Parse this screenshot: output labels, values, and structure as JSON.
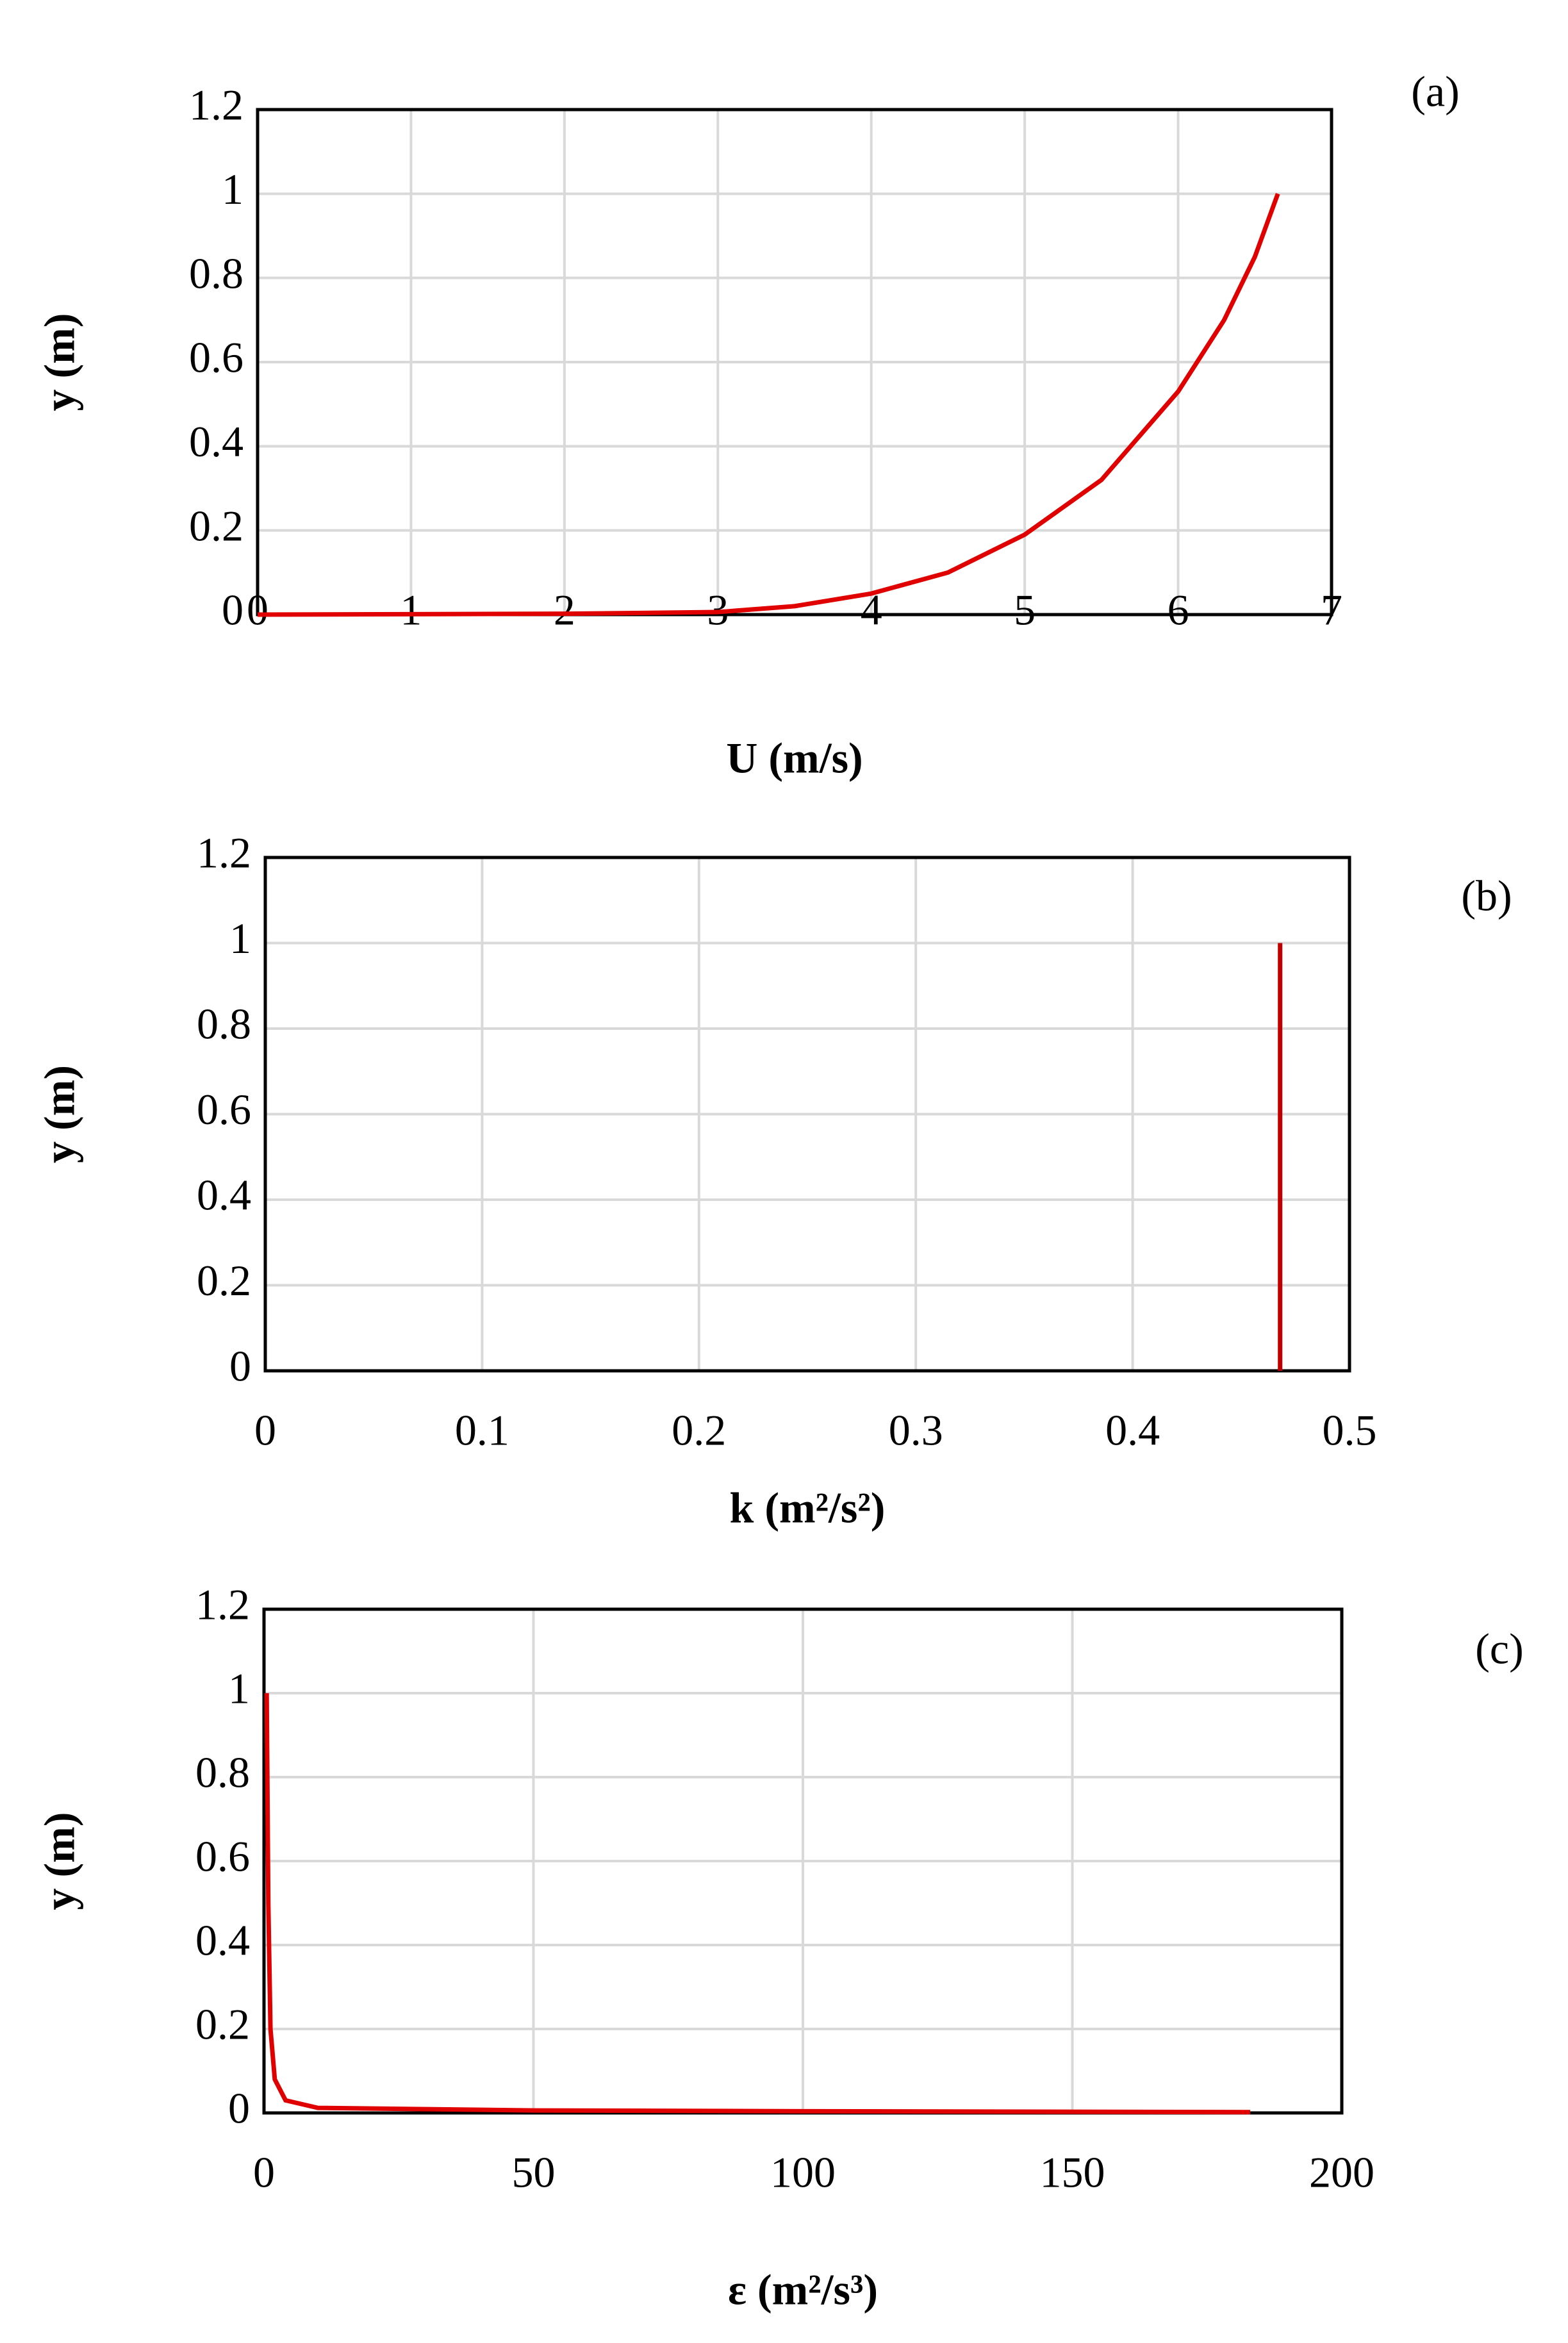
{
  "chart_data": [
    {
      "type": "line",
      "title": "(a)",
      "xlabel": "U (m/s)",
      "ylabel": "y (m)",
      "color": "#e00000",
      "x": [
        0,
        1,
        2,
        3,
        3.5,
        4,
        4.5,
        5,
        5.5,
        6,
        6.3,
        6.5,
        6.65
      ],
      "values": [
        0,
        0.001,
        0.002,
        0.006,
        0.02,
        0.05,
        0.1,
        0.19,
        0.32,
        0.53,
        0.7,
        0.85,
        1.0
      ],
      "xlim": [
        0,
        7
      ],
      "xticks": [
        0,
        1,
        2,
        3,
        4,
        5,
        6,
        7
      ],
      "ylim": [
        0,
        1.2
      ],
      "yticks": [
        0,
        0.2,
        0.4,
        0.6,
        0.8,
        1,
        1.2
      ],
      "grid": true
    },
    {
      "type": "line",
      "title": "(b)",
      "xlabel": "k (m²/s²)",
      "ylabel": "y (m)",
      "color": "#c00000",
      "x": [
        0.468,
        0.468
      ],
      "values": [
        0,
        1
      ],
      "xlim": [
        0,
        0.5
      ],
      "xticks": [
        0,
        0.1,
        0.2,
        0.3,
        0.4,
        0.5
      ],
      "ylim": [
        0,
        1.2
      ],
      "yticks": [
        0,
        0.2,
        0.4,
        0.6,
        0.8,
        1,
        1.2
      ],
      "grid": true
    },
    {
      "type": "line",
      "title": "(c)",
      "xlabel": "ε (m²/s³)",
      "ylabel": "y (m)",
      "color": "#e00000",
      "x": [
        0.5,
        0.8,
        1.2,
        2,
        4,
        10,
        50,
        100,
        183
      ],
      "values": [
        1,
        0.5,
        0.2,
        0.08,
        0.03,
        0.012,
        0.006,
        0.004,
        0.002
      ],
      "xlim": [
        0,
        200
      ],
      "xticks": [
        0,
        50,
        100,
        150,
        200
      ],
      "ylim": [
        0,
        1.2
      ],
      "yticks": [
        0,
        0.2,
        0.4,
        0.6,
        0.8,
        1,
        1.2
      ],
      "grid": true
    }
  ]
}
